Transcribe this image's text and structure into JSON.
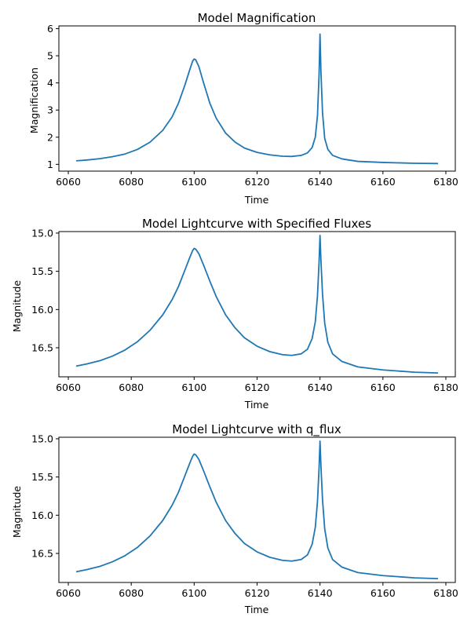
{
  "chart_data": [
    {
      "type": "line",
      "title": "Model Magnification",
      "xlabel": "Time",
      "ylabel": "Magnification",
      "xlim": [
        6057,
        6183
      ],
      "ylim": [
        0.75,
        6.1
      ],
      "yinvert": false,
      "xticks": [
        6060,
        6080,
        6100,
        6120,
        6140,
        6160,
        6180
      ],
      "yticks": [
        1,
        2,
        3,
        4,
        5,
        6
      ],
      "ytick_labels": [
        "1",
        "2",
        "3",
        "4",
        "5",
        "6"
      ],
      "series": [
        {
          "name": "magnification",
          "color": "#1f77b4",
          "points": [
            [
              6062.5,
              1.13
            ],
            [
              6066,
              1.16
            ],
            [
              6070,
              1.21
            ],
            [
              6074,
              1.28
            ],
            [
              6078,
              1.38
            ],
            [
              6082,
              1.55
            ],
            [
              6086,
              1.82
            ],
            [
              6090,
              2.25
            ],
            [
              6093,
              2.75
            ],
            [
              6095,
              3.25
            ],
            [
              6097,
              3.9
            ],
            [
              6098.5,
              4.45
            ],
            [
              6099.5,
              4.8
            ],
            [
              6100,
              4.88
            ],
            [
              6100.5,
              4.85
            ],
            [
              6101.5,
              4.6
            ],
            [
              6103,
              4.0
            ],
            [
              6105,
              3.25
            ],
            [
              6107,
              2.7
            ],
            [
              6110,
              2.15
            ],
            [
              6113,
              1.82
            ],
            [
              6116,
              1.6
            ],
            [
              6120,
              1.44
            ],
            [
              6124,
              1.35
            ],
            [
              6128,
              1.3
            ],
            [
              6131,
              1.29
            ],
            [
              6134,
              1.33
            ],
            [
              6136,
              1.42
            ],
            [
              6137.5,
              1.62
            ],
            [
              6138.5,
              2.0
            ],
            [
              6139.2,
              2.8
            ],
            [
              6139.7,
              4.3
            ],
            [
              6140,
              5.8
            ],
            [
              6140.3,
              4.4
            ],
            [
              6140.8,
              2.9
            ],
            [
              6141.5,
              1.95
            ],
            [
              6142.5,
              1.55
            ],
            [
              6144,
              1.33
            ],
            [
              6147,
              1.2
            ],
            [
              6152,
              1.11
            ],
            [
              6160,
              1.07
            ],
            [
              6170,
              1.04
            ],
            [
              6177.5,
              1.03
            ]
          ]
        }
      ]
    },
    {
      "type": "line",
      "title": "Model Lightcurve with Specified Fluxes",
      "xlabel": "Time",
      "ylabel": "Magnitude",
      "xlim": [
        6057,
        6183
      ],
      "ylim": [
        14.98,
        16.88
      ],
      "yinvert": true,
      "xticks": [
        6060,
        6080,
        6100,
        6120,
        6140,
        6160,
        6180
      ],
      "yticks": [
        15.0,
        15.5,
        16.0,
        16.5
      ],
      "ytick_labels": [
        "15.0",
        "15.5",
        "16.0",
        "16.5"
      ],
      "series": [
        {
          "name": "magnitude",
          "color": "#1f77b4",
          "points": [
            [
              6062.5,
              16.74
            ],
            [
              6066,
              16.71
            ],
            [
              6070,
              16.67
            ],
            [
              6074,
              16.61
            ],
            [
              6078,
              16.53
            ],
            [
              6082,
              16.42
            ],
            [
              6086,
              16.27
            ],
            [
              6090,
              16.07
            ],
            [
              6093,
              15.87
            ],
            [
              6095,
              15.7
            ],
            [
              6097,
              15.49
            ],
            [
              6098.5,
              15.33
            ],
            [
              6099.5,
              15.23
            ],
            [
              6100,
              15.2
            ],
            [
              6100.5,
              15.21
            ],
            [
              6101.5,
              15.27
            ],
            [
              6103,
              15.42
            ],
            [
              6105,
              15.63
            ],
            [
              6107,
              15.83
            ],
            [
              6110,
              16.07
            ],
            [
              6113,
              16.24
            ],
            [
              6116,
              16.37
            ],
            [
              6120,
              16.48
            ],
            [
              6124,
              16.55
            ],
            [
              6128,
              16.59
            ],
            [
              6131,
              16.6
            ],
            [
              6134,
              16.58
            ],
            [
              6136,
              16.52
            ],
            [
              6137.5,
              16.38
            ],
            [
              6138.5,
              16.16
            ],
            [
              6139.2,
              15.82
            ],
            [
              6139.7,
              15.38
            ],
            [
              6140,
              15.03
            ],
            [
              6140.3,
              15.36
            ],
            [
              6140.8,
              15.8
            ],
            [
              6141.5,
              16.18
            ],
            [
              6142.5,
              16.43
            ],
            [
              6144,
              16.58
            ],
            [
              6147,
              16.68
            ],
            [
              6152,
              16.75
            ],
            [
              6160,
              16.79
            ],
            [
              6170,
              16.82
            ],
            [
              6177.5,
              16.83
            ]
          ]
        }
      ]
    },
    {
      "type": "line",
      "title": "Model Lightcurve with q_flux",
      "xlabel": "Time",
      "ylabel": "Magnitude",
      "xlim": [
        6057,
        6183
      ],
      "ylim": [
        14.98,
        16.88
      ],
      "yinvert": true,
      "xticks": [
        6060,
        6080,
        6100,
        6120,
        6140,
        6160,
        6180
      ],
      "yticks": [
        15.0,
        15.5,
        16.0,
        16.5
      ],
      "ytick_labels": [
        "15.0",
        "15.5",
        "16.0",
        "16.5"
      ],
      "series": [
        {
          "name": "magnitude",
          "color": "#1f77b4",
          "points": [
            [
              6062.5,
              16.74
            ],
            [
              6066,
              16.71
            ],
            [
              6070,
              16.67
            ],
            [
              6074,
              16.61
            ],
            [
              6078,
              16.53
            ],
            [
              6082,
              16.42
            ],
            [
              6086,
              16.27
            ],
            [
              6090,
              16.07
            ],
            [
              6093,
              15.87
            ],
            [
              6095,
              15.7
            ],
            [
              6097,
              15.49
            ],
            [
              6098.5,
              15.33
            ],
            [
              6099.5,
              15.23
            ],
            [
              6100,
              15.2
            ],
            [
              6100.5,
              15.21
            ],
            [
              6101.5,
              15.27
            ],
            [
              6103,
              15.42
            ],
            [
              6105,
              15.63
            ],
            [
              6107,
              15.83
            ],
            [
              6110,
              16.07
            ],
            [
              6113,
              16.24
            ],
            [
              6116,
              16.37
            ],
            [
              6120,
              16.48
            ],
            [
              6124,
              16.55
            ],
            [
              6128,
              16.59
            ],
            [
              6131,
              16.6
            ],
            [
              6134,
              16.58
            ],
            [
              6136,
              16.52
            ],
            [
              6137.5,
              16.38
            ],
            [
              6138.5,
              16.16
            ],
            [
              6139.2,
              15.82
            ],
            [
              6139.7,
              15.38
            ],
            [
              6140,
              15.03
            ],
            [
              6140.3,
              15.36
            ],
            [
              6140.8,
              15.8
            ],
            [
              6141.5,
              16.18
            ],
            [
              6142.5,
              16.43
            ],
            [
              6144,
              16.58
            ],
            [
              6147,
              16.68
            ],
            [
              6152,
              16.75
            ],
            [
              6160,
              16.79
            ],
            [
              6170,
              16.82
            ],
            [
              6177.5,
              16.83
            ]
          ]
        }
      ]
    }
  ]
}
